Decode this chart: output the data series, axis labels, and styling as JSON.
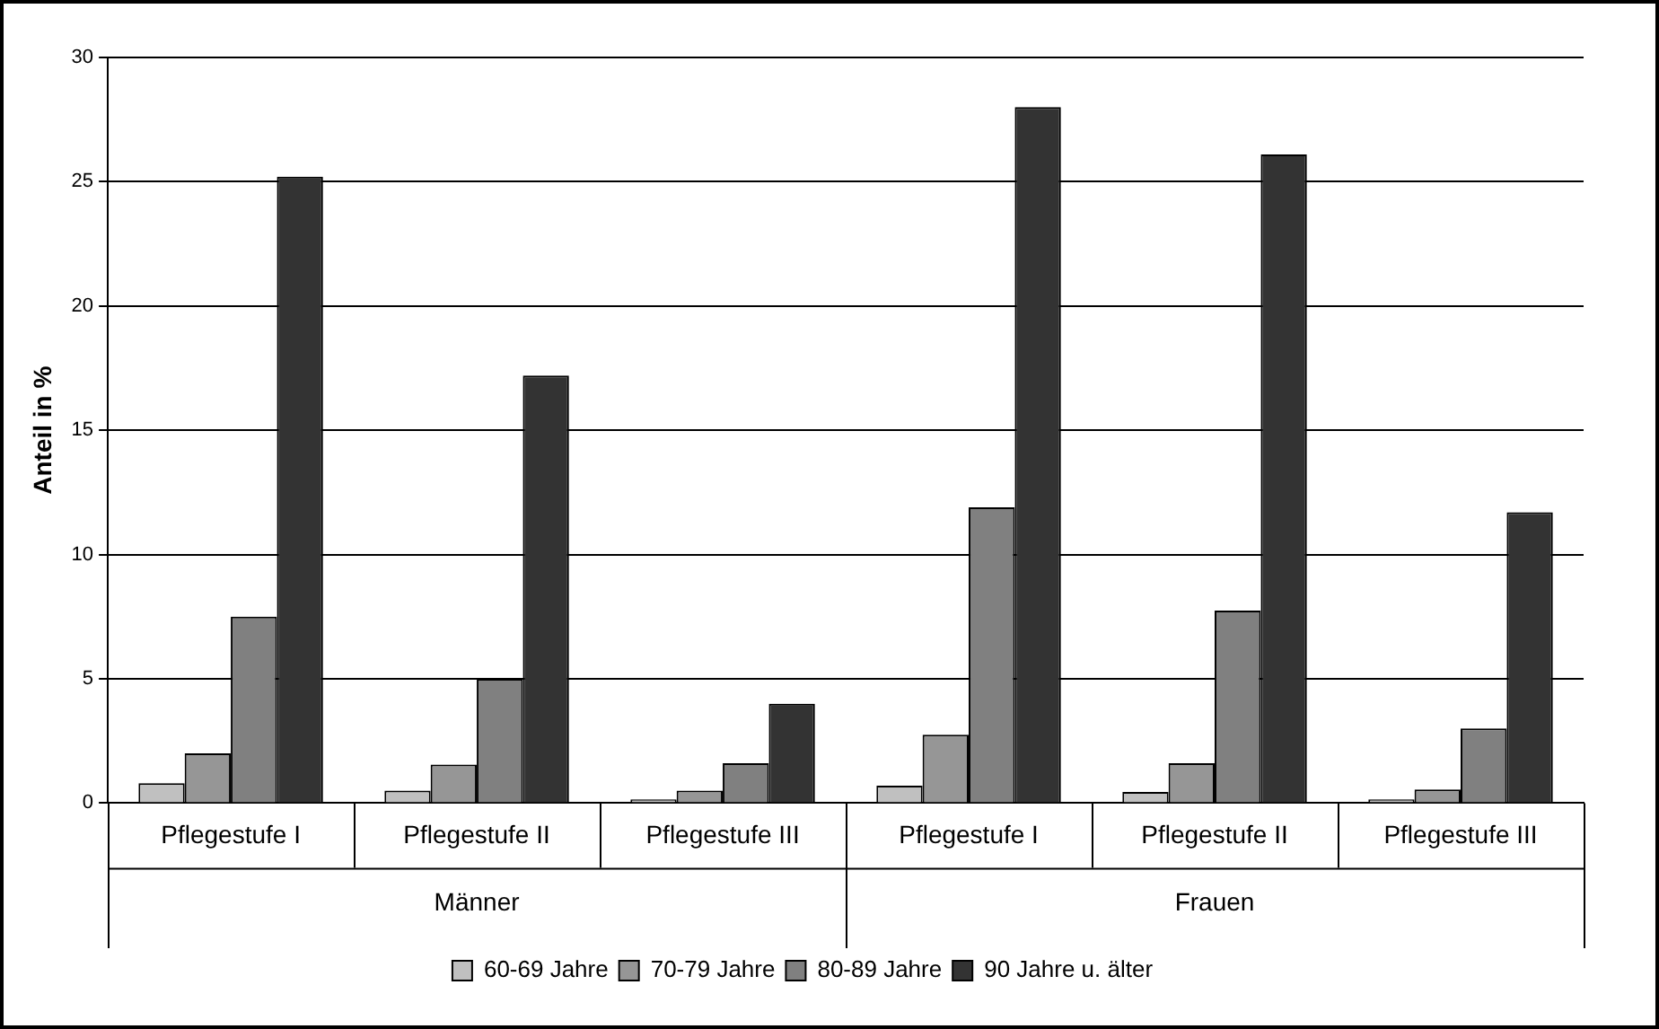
{
  "chart_data": {
    "type": "bar",
    "ylabel": "Anteil in %",
    "categories": [
      "Pflegestufe I",
      "Pflegestufe II",
      "Pflegestufe III",
      "Pflegestufe I",
      "Pflegestufe II",
      "Pflegestufe III"
    ],
    "series": [
      {
        "name": "60-69 Jahre",
        "color": "#c0c0c0",
        "values": [
          0.8,
          0.5,
          0.15,
          0.7,
          0.45,
          0.15
        ]
      },
      {
        "name": "70-79 Jahre",
        "color": "#969696",
        "values": [
          2.0,
          1.55,
          0.5,
          2.75,
          1.6,
          0.55
        ]
      },
      {
        "name": "80-89 Jahre",
        "color": "#808080",
        "values": [
          7.5,
          5.0,
          1.6,
          11.9,
          7.75,
          3.0
        ]
      },
      {
        "name": "90 Jahre u. älter",
        "color": "#333333",
        "values": [
          25.2,
          17.2,
          4.0,
          28.0,
          26.1,
          11.7
        ]
      }
    ],
    "annotations": [
      "Männer",
      "Frauen"
    ],
    "ylim": [
      0,
      30
    ],
    "yticks": [
      0,
      5,
      10,
      15,
      20,
      25,
      30
    ],
    "grid": "y",
    "legend": "bottom"
  }
}
